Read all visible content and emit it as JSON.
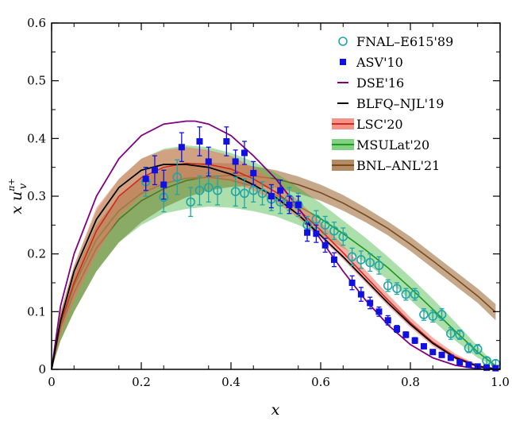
{
  "chart_data": {
    "type": "line",
    "xlabel": "x",
    "ylabel_main": "x u",
    "ylabel_superscript": "π+",
    "ylabel_subscript": "v",
    "xlim": [
      0,
      1
    ],
    "ylim": [
      0,
      0.6
    ],
    "xticks": [
      "0",
      "0.2",
      "0.4",
      "0.6",
      "0.8",
      "1.0"
    ],
    "yticks": [
      "0",
      "0.1",
      "0.2",
      "0.3",
      "0.4",
      "0.5",
      "0.6"
    ],
    "legend_position": "top-right",
    "colors": {
      "fnal": "#20a5a5",
      "asv": "#1010e0",
      "dse": "#800080",
      "blfq": "#000000",
      "lsc": "#f07060",
      "msulat": "#30b030",
      "bnl": "#a06e3c"
    },
    "series": [
      {
        "name": "FNAL–E615'89",
        "kind": "points-open-circle",
        "x": [
          0.21,
          0.25,
          0.28,
          0.31,
          0.33,
          0.35,
          0.37,
          0.41,
          0.43,
          0.45,
          0.47,
          0.49,
          0.51,
          0.53,
          0.55,
          0.57,
          0.59,
          0.61,
          0.63,
          0.65,
          0.67,
          0.69,
          0.71,
          0.73,
          0.75,
          0.77,
          0.79,
          0.81,
          0.83,
          0.85,
          0.87,
          0.89,
          0.91,
          0.93,
          0.95,
          0.97,
          0.99
        ],
        "y": [
          0.325,
          0.298,
          0.333,
          0.29,
          0.31,
          0.315,
          0.31,
          0.308,
          0.305,
          0.31,
          0.305,
          0.295,
          0.29,
          0.295,
          0.285,
          0.25,
          0.26,
          0.25,
          0.24,
          0.23,
          0.195,
          0.19,
          0.185,
          0.18,
          0.145,
          0.14,
          0.13,
          0.13,
          0.095,
          0.092,
          0.095,
          0.062,
          0.06,
          0.037,
          0.035,
          0.015,
          0.01
        ],
        "err": [
          0.025,
          0.025,
          0.03,
          0.025,
          0.025,
          0.025,
          0.025,
          0.025,
          0.025,
          0.02,
          0.02,
          0.02,
          0.02,
          0.02,
          0.02,
          0.015,
          0.015,
          0.015,
          0.015,
          0.015,
          0.015,
          0.015,
          0.015,
          0.015,
          0.01,
          0.01,
          0.01,
          0.01,
          0.01,
          0.01,
          0.01,
          0.01,
          0.008,
          0.008,
          0.008,
          0.006,
          0.006
        ]
      },
      {
        "name": "ASV'10",
        "kind": "points-filled-square",
        "x": [
          0.21,
          0.23,
          0.25,
          0.29,
          0.33,
          0.35,
          0.39,
          0.41,
          0.43,
          0.45,
          0.49,
          0.51,
          0.53,
          0.55,
          0.57,
          0.59,
          0.61,
          0.63,
          0.67,
          0.69,
          0.71,
          0.73,
          0.75,
          0.77,
          0.79,
          0.81,
          0.83,
          0.85,
          0.87,
          0.89,
          0.91,
          0.93,
          0.95,
          0.97,
          0.99
        ],
        "y": [
          0.33,
          0.345,
          0.32,
          0.385,
          0.395,
          0.36,
          0.395,
          0.36,
          0.375,
          0.34,
          0.3,
          0.31,
          0.285,
          0.285,
          0.237,
          0.235,
          0.215,
          0.19,
          0.15,
          0.13,
          0.115,
          0.1,
          0.085,
          0.07,
          0.06,
          0.05,
          0.04,
          0.03,
          0.025,
          0.02,
          0.012,
          0.008,
          0.005,
          0.003,
          0.002
        ],
        "err": [
          0.02,
          0.025,
          0.025,
          0.025,
          0.025,
          0.025,
          0.025,
          0.02,
          0.02,
          0.02,
          0.02,
          0.018,
          0.015,
          0.015,
          0.015,
          0.015,
          0.012,
          0.012,
          0.012,
          0.012,
          0.01,
          0.008,
          0.008,
          0.006,
          0.005,
          0.005,
          0.004,
          0.004,
          0.003,
          0.003,
          0.002,
          0.002,
          0.002,
          0.001,
          0.001
        ]
      },
      {
        "name": "DSE'16",
        "kind": "line",
        "x": [
          0,
          0.02,
          0.05,
          0.1,
          0.15,
          0.2,
          0.25,
          0.3,
          0.32,
          0.35,
          0.4,
          0.45,
          0.5,
          0.55,
          0.6,
          0.65,
          0.7,
          0.75,
          0.8,
          0.85,
          0.9,
          0.95,
          1.0
        ],
        "y": [
          0,
          0.11,
          0.2,
          0.3,
          0.365,
          0.405,
          0.425,
          0.43,
          0.43,
          0.425,
          0.405,
          0.37,
          0.33,
          0.28,
          0.225,
          0.17,
          0.12,
          0.077,
          0.043,
          0.02,
          0.007,
          0.001,
          0
        ]
      },
      {
        "name": "BLFQ–NJL'19",
        "kind": "line",
        "x": [
          0,
          0.02,
          0.05,
          0.1,
          0.15,
          0.2,
          0.25,
          0.3,
          0.35,
          0.4,
          0.45,
          0.5,
          0.55,
          0.6,
          0.65,
          0.7,
          0.75,
          0.8,
          0.85,
          0.9,
          0.95,
          1.0
        ],
        "y": [
          0,
          0.085,
          0.17,
          0.26,
          0.315,
          0.345,
          0.355,
          0.355,
          0.35,
          0.338,
          0.32,
          0.298,
          0.268,
          0.232,
          0.195,
          0.155,
          0.115,
          0.078,
          0.045,
          0.02,
          0.005,
          0
        ]
      },
      {
        "name": "LSC'20",
        "kind": "band",
        "x": [
          0,
          0.02,
          0.05,
          0.1,
          0.15,
          0.2,
          0.25,
          0.3,
          0.35,
          0.4,
          0.45,
          0.5,
          0.55,
          0.6,
          0.65,
          0.7,
          0.75,
          0.8,
          0.85,
          0.9,
          0.95,
          1.0
        ],
        "lower": [
          0,
          0.06,
          0.12,
          0.2,
          0.265,
          0.3,
          0.32,
          0.33,
          0.33,
          0.325,
          0.31,
          0.29,
          0.262,
          0.228,
          0.19,
          0.15,
          0.11,
          0.073,
          0.04,
          0.017,
          0.004,
          0
        ],
        "upper": [
          0,
          0.1,
          0.18,
          0.28,
          0.33,
          0.365,
          0.38,
          0.385,
          0.38,
          0.37,
          0.35,
          0.325,
          0.292,
          0.255,
          0.215,
          0.172,
          0.13,
          0.09,
          0.055,
          0.027,
          0.008,
          0
        ],
        "central": [
          0,
          0.08,
          0.15,
          0.24,
          0.3,
          0.332,
          0.35,
          0.357,
          0.355,
          0.347,
          0.33,
          0.307,
          0.277,
          0.241,
          0.202,
          0.161,
          0.12,
          0.081,
          0.047,
          0.022,
          0.006,
          0
        ]
      },
      {
        "name": "MSULat'20",
        "kind": "band",
        "x": [
          0,
          0.02,
          0.05,
          0.1,
          0.15,
          0.2,
          0.25,
          0.3,
          0.35,
          0.4,
          0.45,
          0.5,
          0.55,
          0.6,
          0.65,
          0.7,
          0.75,
          0.8,
          0.85,
          0.9,
          0.95,
          1.0
        ],
        "lower": [
          0,
          0.05,
          0.1,
          0.17,
          0.22,
          0.25,
          0.27,
          0.278,
          0.282,
          0.28,
          0.274,
          0.265,
          0.25,
          0.232,
          0.21,
          0.185,
          0.155,
          0.12,
          0.085,
          0.05,
          0.02,
          0
        ],
        "upper": [
          0,
          0.1,
          0.18,
          0.275,
          0.33,
          0.365,
          0.382,
          0.388,
          0.385,
          0.375,
          0.36,
          0.34,
          0.315,
          0.288,
          0.258,
          0.228,
          0.195,
          0.16,
          0.122,
          0.082,
          0.04,
          0
        ],
        "central": [
          0,
          0.075,
          0.145,
          0.225,
          0.275,
          0.305,
          0.322,
          0.331,
          0.333,
          0.328,
          0.317,
          0.302,
          0.283,
          0.261,
          0.235,
          0.207,
          0.176,
          0.141,
          0.104,
          0.066,
          0.03,
          0
        ]
      },
      {
        "name": "BNL–ANL'21",
        "kind": "band",
        "x": [
          0,
          0.02,
          0.05,
          0.1,
          0.15,
          0.2,
          0.25,
          0.3,
          0.35,
          0.4,
          0.45,
          0.5,
          0.55,
          0.6,
          0.65,
          0.7,
          0.75,
          0.8,
          0.85,
          0.9,
          0.95,
          0.99
        ],
        "lower": [
          0,
          0.05,
          0.1,
          0.17,
          0.22,
          0.255,
          0.28,
          0.298,
          0.31,
          0.316,
          0.318,
          0.315,
          0.305,
          0.292,
          0.275,
          0.255,
          0.232,
          0.205,
          0.175,
          0.145,
          0.115,
          0.085
        ],
        "upper": [
          0,
          0.095,
          0.165,
          0.25,
          0.3,
          0.33,
          0.347,
          0.356,
          0.358,
          0.357,
          0.352,
          0.345,
          0.334,
          0.32,
          0.302,
          0.28,
          0.256,
          0.23,
          0.2,
          0.17,
          0.14,
          0.113
        ],
        "central": [
          0,
          0.072,
          0.133,
          0.21,
          0.26,
          0.292,
          0.313,
          0.327,
          0.334,
          0.336,
          0.335,
          0.33,
          0.32,
          0.306,
          0.288,
          0.267,
          0.244,
          0.217,
          0.188,
          0.158,
          0.127,
          0.099
        ]
      }
    ]
  }
}
